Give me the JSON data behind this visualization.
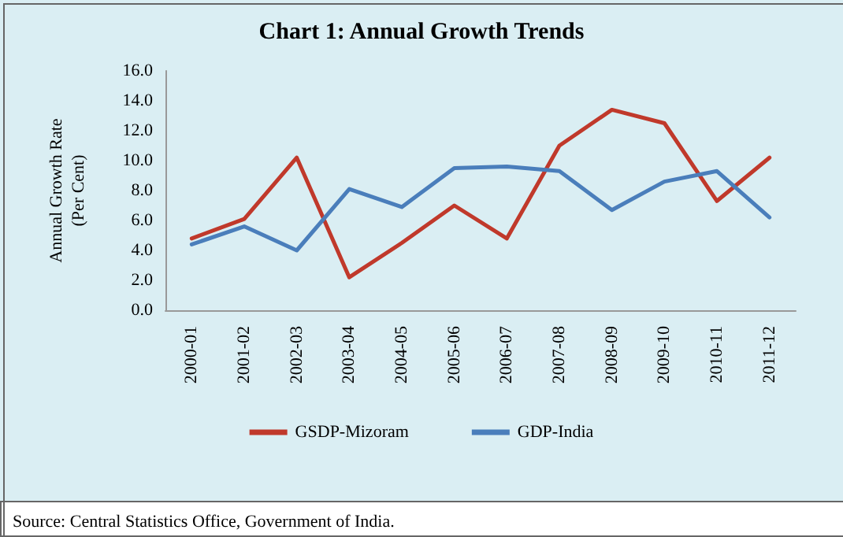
{
  "chart_data": {
    "type": "line",
    "title": "Chart 1: Annual Growth Trends",
    "ylabel": "Annual Growth Rate\n(Per Cent)",
    "categories": [
      "2000-01",
      "2001-02",
      "2002-03",
      "2003-04",
      "2004-05",
      "2005-06",
      "2006-07",
      "2007-08",
      "2008-09",
      "2009-10",
      "2010-11",
      "2011-12"
    ],
    "series": [
      {
        "name": "GSDP-Mizoram",
        "color": "#c0392b",
        "values": [
          4.8,
          6.1,
          10.2,
          2.2,
          4.5,
          7.0,
          4.8,
          11.0,
          13.4,
          12.5,
          7.3,
          10.2
        ]
      },
      {
        "name": "GDP-India",
        "color": "#4a7ebb",
        "values": [
          4.4,
          5.6,
          4.0,
          8.1,
          6.9,
          9.5,
          9.6,
          9.3,
          6.7,
          8.6,
          9.3,
          6.2
        ]
      }
    ],
    "ylim": [
      0,
      16
    ],
    "yticks": [
      {
        "value": 0,
        "label": "0.0"
      },
      {
        "value": 2,
        "label": "2.0"
      },
      {
        "value": 4,
        "label": "4.0"
      },
      {
        "value": 6,
        "label": "6.0"
      },
      {
        "value": 8,
        "label": "8.0"
      },
      {
        "value": 10,
        "label": "10.0"
      },
      {
        "value": 12,
        "label": "12.0"
      },
      {
        "value": 14,
        "label": "14.0"
      },
      {
        "value": 16,
        "label": "16.0"
      }
    ],
    "grid": false,
    "legend": "bottom",
    "marker": "none",
    "line_style": "solid",
    "annotations": [
      "Source: Central Statistics Office, Government of India."
    ]
  }
}
